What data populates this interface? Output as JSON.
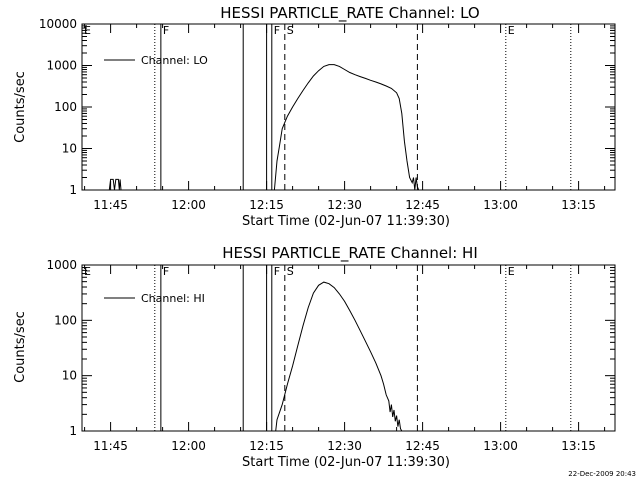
{
  "timestamp": "22-Dec-2009 20:43",
  "chart_data": [
    {
      "type": "line",
      "title": "HESSI PARTICLE_RATE Channel: LO",
      "xlabel": "Start Time (02-Jun-07 11:39:30)",
      "ylabel": "Counts/sec",
      "y_scale": "log",
      "xlim": [
        "11:39:30",
        "13:22:00"
      ],
      "ylim": [
        1,
        10000
      ],
      "x_ticks": [
        "11:45",
        "12:00",
        "12:15",
        "12:30",
        "12:45",
        "13:00",
        "13:15"
      ],
      "y_ticks": [
        {
          "value": 1,
          "label": "1"
        },
        {
          "value": 10,
          "label": "10"
        },
        {
          "value": 100,
          "label": "100"
        },
        {
          "value": 1000,
          "label": "1000"
        },
        {
          "value": 10000,
          "label": "10000"
        }
      ],
      "legend": {
        "placement": "top-left",
        "entries": [
          "Channel: LO"
        ]
      },
      "markers": [
        {
          "time": "11:39:30",
          "style": "dotted",
          "label": "E"
        },
        {
          "time": "11:53:30",
          "style": "dotted",
          "label": ""
        },
        {
          "time": "11:54:40",
          "style": "solid",
          "label": "F"
        },
        {
          "time": "12:10:30",
          "style": "solid",
          "label": ""
        },
        {
          "time": "12:15:00",
          "style": "solid",
          "label": ""
        },
        {
          "time": "12:16:00",
          "style": "solid",
          "label": "F"
        },
        {
          "time": "12:18:30",
          "style": "dashed",
          "label": "S"
        },
        {
          "time": "12:44:00",
          "style": "dashed",
          "label": ""
        },
        {
          "time": "13:01:00",
          "style": "dotted",
          "label": "E"
        },
        {
          "time": "13:13:30",
          "style": "dotted",
          "label": ""
        }
      ],
      "series": [
        {
          "name": "Channel: LO",
          "segments": [
            [
              [
                "11:44:45",
                1
              ],
              [
                "11:45:00",
                1.8
              ],
              [
                "11:45:30",
                1.8
              ],
              [
                "11:45:45",
                1
              ],
              [
                "11:46:00",
                1.8
              ],
              [
                "11:46:30",
                1.8
              ],
              [
                "11:46:40",
                1
              ],
              [
                "11:46:50",
                1.8
              ],
              [
                "11:47:00",
                1
              ]
            ],
            [
              [
                "12:16:30",
                1
              ],
              [
                "12:17:00",
                5
              ],
              [
                "12:17:30",
                12
              ],
              [
                "12:18:00",
                30
              ],
              [
                "12:19:00",
                60
              ],
              [
                "12:20:00",
                100
              ],
              [
                "12:21:00",
                160
              ],
              [
                "12:22:00",
                250
              ],
              [
                "12:23:00",
                380
              ],
              [
                "12:24:00",
                560
              ],
              [
                "12:25:00",
                750
              ],
              [
                "12:26:00",
                950
              ],
              [
                "12:27:00",
                1050
              ],
              [
                "12:28:00",
                1050
              ],
              [
                "12:29:00",
                950
              ],
              [
                "12:30:00",
                800
              ],
              [
                "12:31:00",
                680
              ],
              [
                "12:32:00",
                600
              ],
              [
                "12:33:00",
                540
              ],
              [
                "12:34:00",
                490
              ],
              [
                "12:35:00",
                440
              ],
              [
                "12:36:00",
                400
              ],
              [
                "12:37:00",
                360
              ],
              [
                "12:38:00",
                320
              ],
              [
                "12:39:00",
                280
              ],
              [
                "12:40:00",
                220
              ],
              [
                "12:40:30",
                160
              ],
              [
                "12:41:00",
                70
              ],
              [
                "12:41:30",
                15
              ],
              [
                "12:42:00",
                5
              ],
              [
                "12:42:30",
                2
              ],
              [
                "12:43:00",
                1.5
              ],
              [
                "12:43:15",
                2
              ],
              [
                "12:43:30",
                1
              ],
              [
                "12:43:45",
                2
              ],
              [
                "12:44:00",
                1.2
              ],
              [
                "12:44:15",
                1
              ]
            ]
          ]
        }
      ]
    },
    {
      "type": "line",
      "title": "HESSI PARTICLE_RATE Channel: HI",
      "xlabel": "Start Time (02-Jun-07 11:39:30)",
      "ylabel": "Counts/sec",
      "y_scale": "log",
      "xlim": [
        "11:39:30",
        "13:22:00"
      ],
      "ylim": [
        1,
        1000
      ],
      "x_ticks": [
        "11:45",
        "12:00",
        "12:15",
        "12:30",
        "12:45",
        "13:00",
        "13:15"
      ],
      "y_ticks": [
        {
          "value": 1,
          "label": "1"
        },
        {
          "value": 10,
          "label": "10"
        },
        {
          "value": 100,
          "label": "100"
        },
        {
          "value": 1000,
          "label": "1000"
        }
      ],
      "legend": {
        "placement": "top-left",
        "entries": [
          "Channel: HI"
        ]
      },
      "markers": [
        {
          "time": "11:39:30",
          "style": "dotted",
          "label": "E"
        },
        {
          "time": "11:53:30",
          "style": "dotted",
          "label": ""
        },
        {
          "time": "11:54:40",
          "style": "solid",
          "label": "F"
        },
        {
          "time": "12:10:30",
          "style": "solid",
          "label": ""
        },
        {
          "time": "12:15:00",
          "style": "solid",
          "label": ""
        },
        {
          "time": "12:16:00",
          "style": "solid",
          "label": "F"
        },
        {
          "time": "12:18:30",
          "style": "dashed",
          "label": "S"
        },
        {
          "time": "12:44:00",
          "style": "dashed",
          "label": ""
        },
        {
          "time": "13:01:00",
          "style": "dotted",
          "label": "E"
        },
        {
          "time": "13:13:30",
          "style": "dotted",
          "label": ""
        }
      ],
      "series": [
        {
          "name": "Channel: HI",
          "segments": [
            [
              [
                "12:16:45",
                1
              ],
              [
                "12:17:00",
                1.6
              ],
              [
                "12:18:00",
                3
              ],
              [
                "12:19:00",
                7
              ],
              [
                "12:20:00",
                15
              ],
              [
                "12:21:00",
                35
              ],
              [
                "12:22:00",
                80
              ],
              [
                "12:23:00",
                170
              ],
              [
                "12:24:00",
                310
              ],
              [
                "12:25:00",
                430
              ],
              [
                "12:26:00",
                490
              ],
              [
                "12:27:00",
                460
              ],
              [
                "12:28:00",
                390
              ],
              [
                "12:29:00",
                300
              ],
              [
                "12:30:00",
                220
              ],
              [
                "12:31:00",
                150
              ],
              [
                "12:32:00",
                100
              ],
              [
                "12:33:00",
                65
              ],
              [
                "12:34:00",
                42
              ],
              [
                "12:35:00",
                27
              ],
              [
                "12:36:00",
                17
              ],
              [
                "12:37:00",
                10
              ],
              [
                "12:37:30",
                7
              ],
              [
                "12:38:00",
                4.5
              ],
              [
                "12:38:30",
                3.5
              ],
              [
                "12:38:45",
                2.2
              ],
              [
                "12:39:00",
                3
              ],
              [
                "12:39:15",
                1.8
              ],
              [
                "12:39:30",
                2.4
              ],
              [
                "12:39:45",
                1.5
              ],
              [
                "12:40:00",
                1.9
              ],
              [
                "12:40:15",
                1.2
              ],
              [
                "12:40:30",
                1.6
              ],
              [
                "12:40:45",
                1.1
              ],
              [
                "12:41:00",
                1
              ]
            ]
          ]
        }
      ]
    }
  ]
}
